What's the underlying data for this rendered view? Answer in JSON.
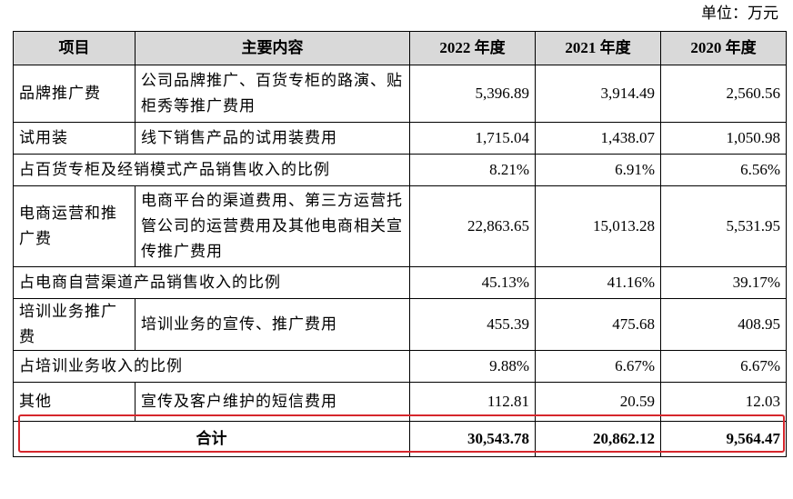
{
  "unit_label": "单位：万元",
  "columns": {
    "item": "项目",
    "content": "主要内容",
    "y2022": "2022 年度",
    "y2021": "2021 年度",
    "y2020": "2020 年度"
  },
  "rows": [
    {
      "item": "品牌推广费",
      "content": "公司品牌推广、百货专柜的路演、贴柜秀等推广费用",
      "y2022": "5,396.89",
      "y2021": "3,914.49",
      "y2020": "2,560.56"
    },
    {
      "item": "试用装",
      "content": "线下销售产品的试用装费用",
      "y2022": "1,715.04",
      "y2021": "1,438.07",
      "y2020": "1,050.98"
    },
    {
      "item": "占百货专柜及经销模式产品销售收入的比例",
      "y2022": "8.21%",
      "y2021": "6.91%",
      "y2020": "6.56%"
    },
    {
      "item": "电商运营和推广费",
      "content": "电商平台的渠道费用、第三方运营托管公司的运营费用及其他电商相关宣传推广费用",
      "y2022": "22,863.65",
      "y2021": "15,013.28",
      "y2020": "5,531.95"
    },
    {
      "item": "占电商自营渠道产品销售收入的比例",
      "y2022": "45.13%",
      "y2021": "41.16%",
      "y2020": "39.17%"
    },
    {
      "item": "培训业务推广费",
      "content": "培训业务的宣传、推广费用",
      "y2022": "455.39",
      "y2021": "475.68",
      "y2020": "408.95"
    },
    {
      "item": "占培训业务收入的比例",
      "y2022": "9.88%",
      "y2021": "6.67%",
      "y2020": "6.67%"
    },
    {
      "item": "其他",
      "content": "宣传及客户维护的短信费用",
      "y2022": "112.81",
      "y2021": "20.59",
      "y2020": "12.03"
    }
  ],
  "total": {
    "label": "合计",
    "y2022": "30,543.78",
    "y2021": "20,862.12",
    "y2020": "9,564.47"
  },
  "highlight_color": "#d6262c",
  "header_bg": "#d9d9d9"
}
